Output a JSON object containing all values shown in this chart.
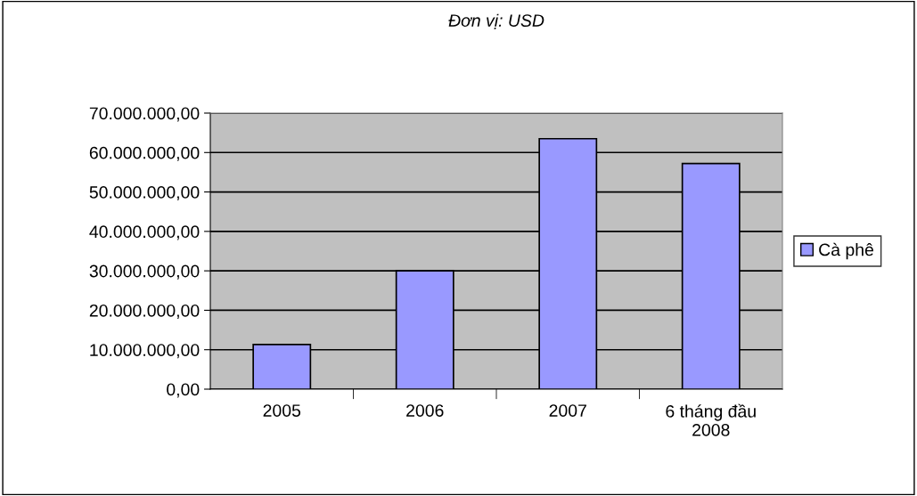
{
  "chart_data": {
    "type": "bar",
    "title": "Đơn vị: USD",
    "categories": [
      "2005",
      "2006",
      "2007",
      "6 tháng đầu\n2008"
    ],
    "series": [
      {
        "name": "Cà phê",
        "color": "#9999ff",
        "values": [
          11300000,
          30000000,
          63500000,
          57200000
        ]
      }
    ],
    "ylim": [
      0,
      70000000
    ],
    "yticks": [
      {
        "value": 0,
        "label": "0,00"
      },
      {
        "value": 10000000,
        "label": "10.000.000,00"
      },
      {
        "value": 20000000,
        "label": "20.000.000,00"
      },
      {
        "value": 30000000,
        "label": "30.000.000,00"
      },
      {
        "value": 40000000,
        "label": "40.000.000,00"
      },
      {
        "value": 50000000,
        "label": "50.000.000,00"
      },
      {
        "value": 60000000,
        "label": "60.000.000,00"
      },
      {
        "value": 70000000,
        "label": "70.000.000,00"
      }
    ],
    "grid": "y",
    "legend": "right"
  }
}
